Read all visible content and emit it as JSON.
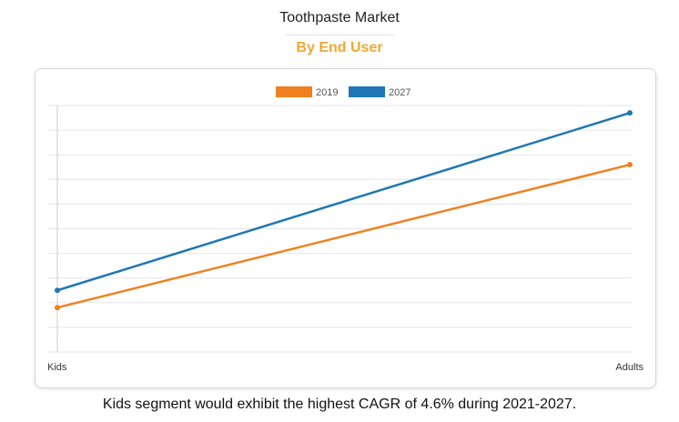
{
  "page": {
    "title": "Toothpaste Market",
    "subtitle": "By End User",
    "footer": "Kids segment would exhibit the highest CAGR of 4.6% during 2021-2027."
  },
  "chart_data": {
    "type": "line",
    "categories": [
      "Kids",
      "Adults"
    ],
    "series": [
      {
        "name": "2019",
        "color": "#f0801f",
        "values": [
          18,
          76
        ]
      },
      {
        "name": "2027",
        "color": "#1f77b4",
        "values": [
          25,
          97
        ]
      }
    ],
    "ylim": [
      0,
      100
    ],
    "grid": true,
    "legend": "top-center",
    "y_ticks_shown": false
  }
}
